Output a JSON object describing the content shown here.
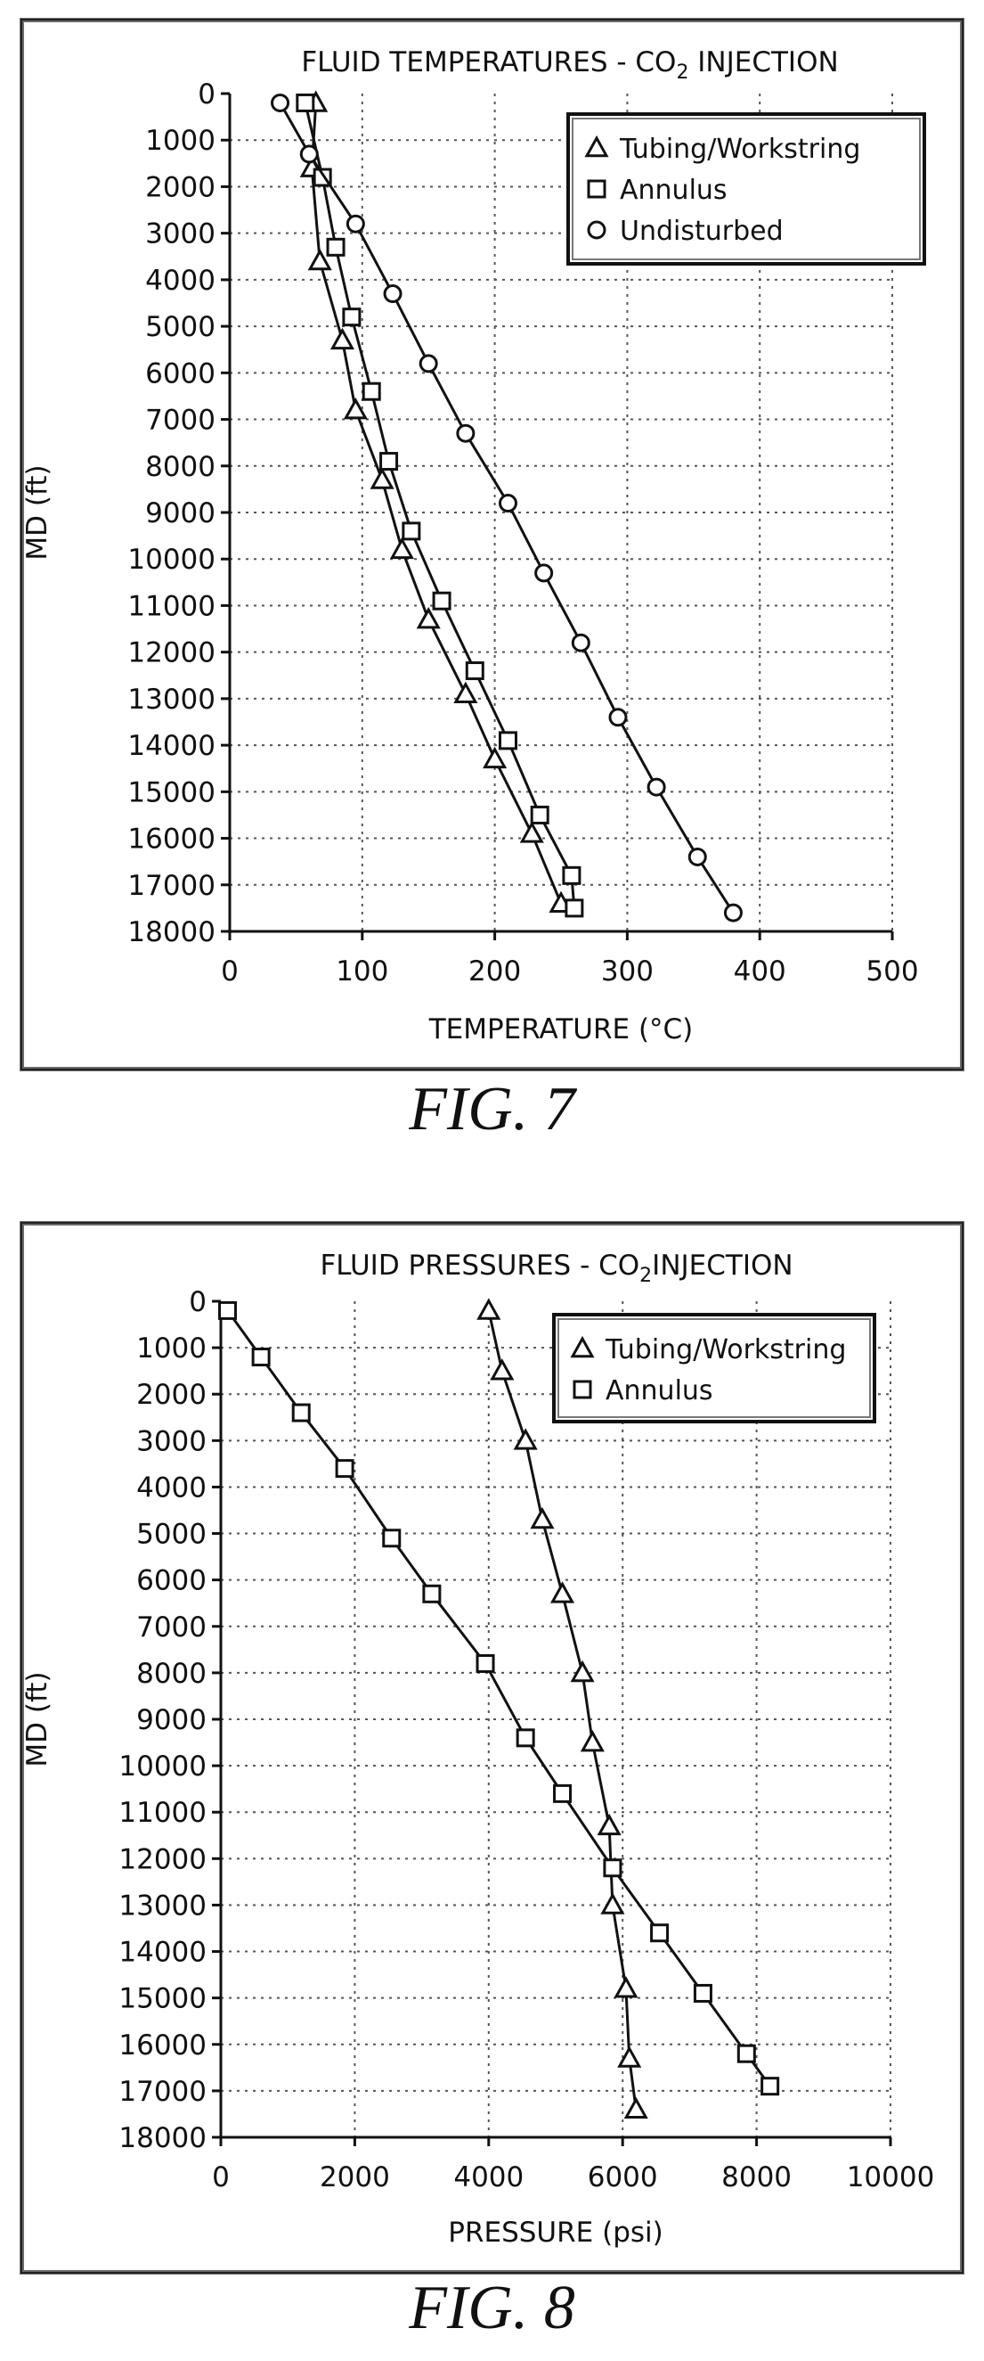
{
  "figures": {
    "fig7_caption": "FIG. 7",
    "fig8_caption": "FIG. 8"
  },
  "chart_data": [
    {
      "type": "line",
      "title": "FLUID TEMPERATURES - CO",
      "title_subscript": "2",
      "title_suffix": " INJECTION",
      "xlabel": "TEMPERATURE (°C)",
      "ylabel": "MD (ft)",
      "xlim": [
        0,
        500
      ],
      "ylim": [
        0,
        18000
      ],
      "y_inverted": true,
      "x_ticks": [
        0,
        100,
        200,
        300,
        400,
        500
      ],
      "y_ticks": [
        0,
        1000,
        2000,
        3000,
        4000,
        5000,
        6000,
        7000,
        8000,
        9000,
        10000,
        11000,
        12000,
        13000,
        14000,
        15000,
        16000,
        17000,
        18000
      ],
      "grid": true,
      "legend_position": "top-right",
      "series": [
        {
          "name": "Tubing/Workstring",
          "marker": "triangle",
          "points": [
            [
              65,
              200
            ],
            [
              62,
              1600
            ],
            [
              68,
              3600
            ],
            [
              85,
              5300
            ],
            [
              95,
              6800
            ],
            [
              115,
              8300
            ],
            [
              130,
              9800
            ],
            [
              150,
              11300
            ],
            [
              178,
              12900
            ],
            [
              200,
              14300
            ],
            [
              228,
              15900
            ],
            [
              250,
              17400
            ]
          ]
        },
        {
          "name": "Annulus",
          "marker": "square",
          "points": [
            [
              57,
              200
            ],
            [
              70,
              1800
            ],
            [
              80,
              3300
            ],
            [
              92,
              4800
            ],
            [
              107,
              6400
            ],
            [
              120,
              7900
            ],
            [
              137,
              9400
            ],
            [
              160,
              10900
            ],
            [
              185,
              12400
            ],
            [
              210,
              13900
            ],
            [
              234,
              15500
            ],
            [
              258,
              16800
            ],
            [
              260,
              17500
            ]
          ]
        },
        {
          "name": "Undisturbed",
          "marker": "circle",
          "points": [
            [
              38,
              200
            ],
            [
              60,
              1300
            ],
            [
              95,
              2800
            ],
            [
              123,
              4300
            ],
            [
              150,
              5800
            ],
            [
              178,
              7300
            ],
            [
              210,
              8800
            ],
            [
              237,
              10300
            ],
            [
              265,
              11800
            ],
            [
              293,
              13400
            ],
            [
              322,
              14900
            ],
            [
              353,
              16400
            ],
            [
              380,
              17600
            ]
          ]
        }
      ]
    },
    {
      "type": "line",
      "title": "FLUID PRESSURES - CO",
      "title_subscript": "2",
      "title_suffix": "INJECTION",
      "xlabel": "PRESSURE (psi)",
      "ylabel": "MD (ft)",
      "xlim": [
        0,
        10000
      ],
      "ylim": [
        0,
        18000
      ],
      "y_inverted": true,
      "x_ticks": [
        0,
        2000,
        4000,
        6000,
        8000,
        10000
      ],
      "y_ticks": [
        0,
        1000,
        2000,
        3000,
        4000,
        5000,
        6000,
        7000,
        8000,
        9000,
        10000,
        11000,
        12000,
        13000,
        14000,
        15000,
        16000,
        17000,
        18000
      ],
      "grid": true,
      "legend_position": "top-right",
      "series": [
        {
          "name": "Tubing/Workstring",
          "marker": "triangle",
          "points": [
            [
              4000,
              200
            ],
            [
              4200,
              1500
            ],
            [
              4550,
              3000
            ],
            [
              4800,
              4700
            ],
            [
              5100,
              6300
            ],
            [
              5400,
              8000
            ],
            [
              5550,
              9500
            ],
            [
              5800,
              11300
            ],
            [
              5850,
              13000
            ],
            [
              6050,
              14800
            ],
            [
              6100,
              16300
            ],
            [
              6200,
              17400
            ]
          ]
        },
        {
          "name": "Annulus",
          "marker": "square",
          "points": [
            [
              100,
              200
            ],
            [
              600,
              1200
            ],
            [
              1200,
              2400
            ],
            [
              1850,
              3600
            ],
            [
              2550,
              5100
            ],
            [
              3150,
              6300
            ],
            [
              3950,
              7800
            ],
            [
              4550,
              9400
            ],
            [
              5100,
              10600
            ],
            [
              5850,
              12200
            ],
            [
              6550,
              13600
            ],
            [
              7200,
              14900
            ],
            [
              7850,
              16200
            ],
            [
              8200,
              16900
            ]
          ]
        }
      ]
    }
  ]
}
